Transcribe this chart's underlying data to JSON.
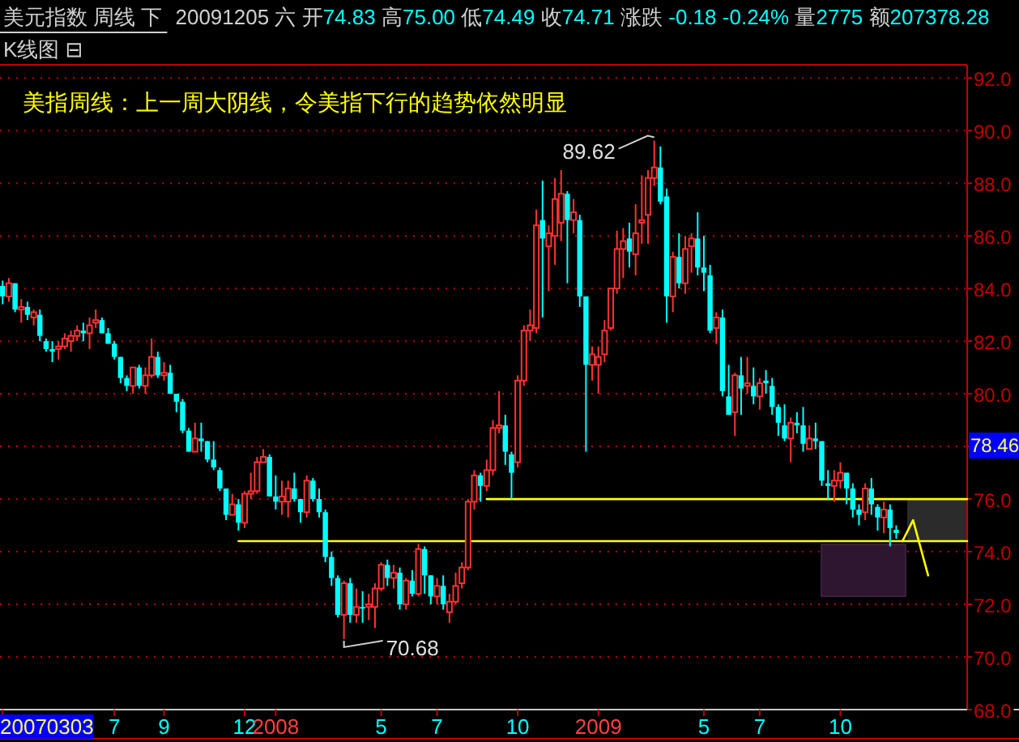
{
  "chart_data": {
    "type": "candlestick",
    "title": "美元指数 周线 下",
    "subtitle": "20091205 六 开74.83 高75.00 低74.49 收74.71 涨跌 -0.18 -0.24% 量2775 额207378.28",
    "annotations": [
      "K线图 ⊟",
      "美指周线：上一周大阴线，令美指下行的趋势依然明显",
      {
        "text": "89.62",
        "x": "2009-03-07",
        "y": 89.62
      },
      {
        "text": "70.68",
        "x": "2008-03-22",
        "y": 70.68
      },
      "78.46"
    ],
    "x": [
      "2007-03-03",
      "2007-03-10",
      "2007-03-17",
      "2007-03-24",
      "2007-03-31",
      "2007-04-07",
      "2007-04-14",
      "2007-04-21",
      "2007-04-28",
      "2007-05-05",
      "2007-05-12",
      "2007-05-19",
      "2007-05-26",
      "2007-06-02",
      "2007-06-09",
      "2007-06-16",
      "2007-06-23",
      "2007-06-30",
      "2007-07-07",
      "2007-07-14",
      "2007-07-21",
      "2007-07-28",
      "2007-08-04",
      "2007-08-11",
      "2007-08-18",
      "2007-08-25",
      "2007-09-01",
      "2007-09-08",
      "2007-09-15",
      "2007-09-22",
      "2007-09-29",
      "2007-10-06",
      "2007-10-13",
      "2007-10-20",
      "2007-10-27",
      "2007-11-03",
      "2007-11-10",
      "2007-11-17",
      "2007-11-24",
      "2007-12-01",
      "2007-12-08",
      "2007-12-15",
      "2007-12-22",
      "2007-12-29",
      "2008-01-05",
      "2008-01-12",
      "2008-01-19",
      "2008-01-26",
      "2008-02-02",
      "2008-02-09",
      "2008-02-16",
      "2008-02-23",
      "2008-03-01",
      "2008-03-08",
      "2008-03-15",
      "2008-03-22",
      "2008-03-29",
      "2008-04-05",
      "2008-04-12",
      "2008-04-19",
      "2008-04-26",
      "2008-05-03",
      "2008-05-10",
      "2008-05-17",
      "2008-05-24",
      "2008-05-31",
      "2008-06-07",
      "2008-06-14",
      "2008-06-21",
      "2008-06-28",
      "2008-07-05",
      "2008-07-12",
      "2008-07-19",
      "2008-07-26",
      "2008-08-02",
      "2008-08-09",
      "2008-08-16",
      "2008-08-23",
      "2008-08-30",
      "2008-09-06",
      "2008-09-13",
      "2008-09-20",
      "2008-09-27",
      "2008-10-04",
      "2008-10-11",
      "2008-10-18",
      "2008-10-25",
      "2008-11-01",
      "2008-11-08",
      "2008-11-15",
      "2008-11-22",
      "2008-11-29",
      "2008-12-06",
      "2008-12-13",
      "2008-12-20",
      "2008-12-27",
      "2009-01-03",
      "2009-01-10",
      "2009-01-17",
      "2009-01-24",
      "2009-01-31",
      "2009-02-07",
      "2009-02-14",
      "2009-02-21",
      "2009-02-28",
      "2009-03-07",
      "2009-03-14",
      "2009-03-21",
      "2009-03-28",
      "2009-04-04",
      "2009-04-11",
      "2009-04-18",
      "2009-04-25",
      "2009-05-02",
      "2009-05-09",
      "2009-05-16",
      "2009-05-23",
      "2009-05-30",
      "2009-06-06",
      "2009-06-13",
      "2009-06-20",
      "2009-06-27",
      "2009-07-04",
      "2009-07-11",
      "2009-07-18",
      "2009-07-25",
      "2009-08-01",
      "2009-08-08",
      "2009-08-15",
      "2009-08-22",
      "2009-08-29",
      "2009-09-05",
      "2009-09-12",
      "2009-09-19",
      "2009-09-26",
      "2009-10-03",
      "2009-10-10",
      "2009-10-17",
      "2009-10-24",
      "2009-10-31",
      "2009-11-07",
      "2009-11-14",
      "2009-11-21",
      "2009-11-28",
      "2009-12-05"
    ],
    "ohlc": [
      [
        84.1,
        84.3,
        83.4,
        83.7
      ],
      [
        83.7,
        84.4,
        83.5,
        84.2
      ],
      [
        84.2,
        84.2,
        83.1,
        83.2
      ],
      [
        83.2,
        83.6,
        82.7,
        83.3
      ],
      [
        83.3,
        83.5,
        82.8,
        83.0
      ],
      [
        82.9,
        83.2,
        82.6,
        83.1
      ],
      [
        83.0,
        83.2,
        82.0,
        82.2
      ],
      [
        82.0,
        82.1,
        81.6,
        81.7
      ],
      [
        81.7,
        82.0,
        81.2,
        81.6
      ],
      [
        81.7,
        82.0,
        81.3,
        81.8
      ],
      [
        81.8,
        82.3,
        81.7,
        82.1
      ],
      [
        82.0,
        82.4,
        81.6,
        82.2
      ],
      [
        82.2,
        82.6,
        82.0,
        82.4
      ],
      [
        82.4,
        82.7,
        82.0,
        82.3
      ],
      [
        82.3,
        82.9,
        81.7,
        82.6
      ],
      [
        82.7,
        83.2,
        82.5,
        82.8
      ],
      [
        82.8,
        82.9,
        82.3,
        82.3
      ],
      [
        82.3,
        82.5,
        81.9,
        81.9
      ],
      [
        81.9,
        82.0,
        81.3,
        81.4
      ],
      [
        81.4,
        81.4,
        80.4,
        80.6
      ],
      [
        80.6,
        80.7,
        80.1,
        80.3
      ],
      [
        80.3,
        81.0,
        80.0,
        81.0
      ],
      [
        81.0,
        81.1,
        80.2,
        80.3
      ],
      [
        80.3,
        81.0,
        80.0,
        80.7
      ],
      [
        80.7,
        82.1,
        80.6,
        81.4
      ],
      [
        81.4,
        81.6,
        80.6,
        80.7
      ],
      [
        80.7,
        81.2,
        80.5,
        80.8
      ],
      [
        80.8,
        81.1,
        80.0,
        80.0
      ],
      [
        80.0,
        80.0,
        79.3,
        79.7
      ],
      [
        79.7,
        79.8,
        78.5,
        78.6
      ],
      [
        78.6,
        78.7,
        77.8,
        77.8
      ],
      [
        77.8,
        78.9,
        77.8,
        78.3
      ],
      [
        78.3,
        78.9,
        77.8,
        78.2
      ],
      [
        78.2,
        78.2,
        77.4,
        77.5
      ],
      [
        77.5,
        78.2,
        77.1,
        77.2
      ],
      [
        77.1,
        77.2,
        76.3,
        76.4
      ],
      [
        76.4,
        76.4,
        75.2,
        75.4
      ],
      [
        75.4,
        76.2,
        75.4,
        75.8
      ],
      [
        75.8,
        76.0,
        74.8,
        75.1
      ],
      [
        75.1,
        76.3,
        74.9,
        76.2
      ],
      [
        76.2,
        77.0,
        76.0,
        76.3
      ],
      [
        76.3,
        77.6,
        76.2,
        77.4
      ],
      [
        77.4,
        77.9,
        77.4,
        77.6
      ],
      [
        77.6,
        77.7,
        76.1,
        76.1
      ],
      [
        76.1,
        76.9,
        75.6,
        75.9
      ],
      [
        75.9,
        76.7,
        75.4,
        76.1
      ],
      [
        75.9,
        76.7,
        75.3,
        76.4
      ],
      [
        76.4,
        77.0,
        75.9,
        76.0
      ],
      [
        76.0,
        76.0,
        75.1,
        75.5
      ],
      [
        75.5,
        76.9,
        75.3,
        76.7
      ],
      [
        76.7,
        76.8,
        75.9,
        76.0
      ],
      [
        76.0,
        76.4,
        75.3,
        75.5
      ],
      [
        75.5,
        75.6,
        73.6,
        73.8
      ],
      [
        73.8,
        74.0,
        72.7,
        73.0
      ],
      [
        73.0,
        73.1,
        71.5,
        71.6
      ],
      [
        71.6,
        72.9,
        70.68,
        72.8
      ],
      [
        72.8,
        73.0,
        71.3,
        71.6
      ],
      [
        71.6,
        72.6,
        71.3,
        71.9
      ],
      [
        71.9,
        72.5,
        71.3,
        71.9
      ],
      [
        71.9,
        72.4,
        71.4,
        72.0
      ],
      [
        71.9,
        72.8,
        71.1,
        72.6
      ],
      [
        72.6,
        73.6,
        72.5,
        73.5
      ],
      [
        73.5,
        73.7,
        72.7,
        73.0
      ],
      [
        73.0,
        73.5,
        72.6,
        73.2
      ],
      [
        73.2,
        73.4,
        71.8,
        72.0
      ],
      [
        72.0,
        73.0,
        71.8,
        72.9
      ],
      [
        72.9,
        73.3,
        72.3,
        72.4
      ],
      [
        72.4,
        74.3,
        72.3,
        74.1
      ],
      [
        74.1,
        74.2,
        72.4,
        73.1
      ],
      [
        73.1,
        73.1,
        72.0,
        72.3
      ],
      [
        72.3,
        73.0,
        72.0,
        72.7
      ],
      [
        72.7,
        73.1,
        71.8,
        72.0
      ],
      [
        71.7,
        72.4,
        71.3,
        72.1
      ],
      [
        72.1,
        73.2,
        72.0,
        72.7
      ],
      [
        72.8,
        73.6,
        72.6,
        73.4
      ],
      [
        73.4,
        76.0,
        73.3,
        75.9
      ],
      [
        75.9,
        77.1,
        75.6,
        76.9
      ],
      [
        76.9,
        77.0,
        75.9,
        76.5
      ],
      [
        76.5,
        77.5,
        76.3,
        77.1
      ],
      [
        77.1,
        79.0,
        76.9,
        78.7
      ],
      [
        78.7,
        80.1,
        78.5,
        78.8
      ],
      [
        78.8,
        79.2,
        77.3,
        77.8
      ],
      [
        77.7,
        77.8,
        76.0,
        77.0
      ],
      [
        77.4,
        80.7,
        77.2,
        80.5
      ],
      [
        80.5,
        82.6,
        80.3,
        82.4
      ],
      [
        82.4,
        83.2,
        82.0,
        82.6
      ],
      [
        82.5,
        87.0,
        82.3,
        86.4
      ],
      [
        86.6,
        88.1,
        82.9,
        85.9
      ],
      [
        85.6,
        86.4,
        83.9,
        86.1
      ],
      [
        86.0,
        88.2,
        84.9,
        87.4
      ],
      [
        86.5,
        88.5,
        85.8,
        87.6
      ],
      [
        87.6,
        87.7,
        84.2,
        86.6
      ],
      [
        86.6,
        87.4,
        86.1,
        86.9
      ],
      [
        86.6,
        86.8,
        83.3,
        83.7
      ],
      [
        83.7,
        83.7,
        77.8,
        81.1
      ],
      [
        81.1,
        81.8,
        80.5,
        81.5
      ],
      [
        81.1,
        81.8,
        80.0,
        81.4
      ],
      [
        81.5,
        82.8,
        81.2,
        82.4
      ],
      [
        82.5,
        84.0,
        82.4,
        84.0
      ],
      [
        84.0,
        86.2,
        83.8,
        85.5
      ],
      [
        85.5,
        86.3,
        84.4,
        85.8
      ],
      [
        85.9,
        86.5,
        84.8,
        85.4
      ],
      [
        85.3,
        87.2,
        84.5,
        86.1
      ],
      [
        86.5,
        88.3,
        85.7,
        86.6
      ],
      [
        86.8,
        88.5,
        85.7,
        88.2
      ],
      [
        88.2,
        89.62,
        87.9,
        88.6
      ],
      [
        88.6,
        89.4,
        87.2,
        87.3
      ],
      [
        87.5,
        87.8,
        82.7,
        83.7
      ],
      [
        83.7,
        85.4,
        83.1,
        85.2
      ],
      [
        85.2,
        86.1,
        84.0,
        84.2
      ],
      [
        84.2,
        86.0,
        83.8,
        85.5
      ],
      [
        85.6,
        86.1,
        84.6,
        85.9
      ],
      [
        85.9,
        86.9,
        84.5,
        84.8
      ],
      [
        84.8,
        86.0,
        83.9,
        84.6
      ],
      [
        84.5,
        84.9,
        82.3,
        82.4
      ],
      [
        82.5,
        83.1,
        81.9,
        82.9
      ],
      [
        82.9,
        83.2,
        79.9,
        80.1
      ],
      [
        79.9,
        81.1,
        79.2,
        79.2
      ],
      [
        79.3,
        80.8,
        78.4,
        80.7
      ],
      [
        80.7,
        81.4,
        79.2,
        80.2
      ],
      [
        80.3,
        81.4,
        80.0,
        80.4
      ],
      [
        80.3,
        81.0,
        79.6,
        79.9
      ],
      [
        79.9,
        80.6,
        79.4,
        80.4
      ],
      [
        80.5,
        80.9,
        80.0,
        80.4
      ],
      [
        80.3,
        80.6,
        79.2,
        79.5
      ],
      [
        79.5,
        79.6,
        78.4,
        78.9
      ],
      [
        78.8,
        79.6,
        78.2,
        78.3
      ],
      [
        78.3,
        79.1,
        77.4,
        78.9
      ],
      [
        78.9,
        79.3,
        78.5,
        78.8
      ],
      [
        78.8,
        79.5,
        77.8,
        78.1
      ],
      [
        77.9,
        78.8,
        77.9,
        78.3
      ],
      [
        78.3,
        78.9,
        77.9,
        78.2
      ],
      [
        78.2,
        78.2,
        76.5,
        76.7
      ],
      [
        76.6,
        77.1,
        76.0,
        76.5
      ],
      [
        76.5,
        77.1,
        75.9,
        76.7
      ],
      [
        76.7,
        77.4,
        76.4,
        77.0
      ],
      [
        77.0,
        77.0,
        75.8,
        76.4
      ],
      [
        76.4,
        76.6,
        75.3,
        75.6
      ],
      [
        75.6,
        75.8,
        75.0,
        75.4
      ],
      [
        75.5,
        76.6,
        75.2,
        76.4
      ],
      [
        76.4,
        76.8,
        75.4,
        75.8
      ],
      [
        75.7,
        75.8,
        74.8,
        75.3
      ],
      [
        75.3,
        75.9,
        74.7,
        75.6
      ],
      [
        75.6,
        75.8,
        74.2,
        74.9
      ],
      [
        74.83,
        75.0,
        74.49,
        74.71
      ]
    ],
    "colors": [
      "#00ffff",
      "#ff3232",
      "#00ffff",
      "#ff3232",
      "#00ffff",
      "#ff3232",
      "#00ffff",
      "#00ffff",
      "#00ffff",
      "#ff3232",
      "#ff3232",
      "#ff3232",
      "#ff3232",
      "#00ffff",
      "#ff3232",
      "#ff3232",
      "#00ffff",
      "#00ffff",
      "#00ffff",
      "#00ffff",
      "#00ffff",
      "#ff3232",
      "#00ffff",
      "#ff3232",
      "#ff3232",
      "#00ffff",
      "#ff3232",
      "#00ffff",
      "#00ffff",
      "#00ffff",
      "#00ffff",
      "#ff3232",
      "#00ffff",
      "#00ffff",
      "#00ffff",
      "#00ffff",
      "#00ffff",
      "#ff3232",
      "#00ffff",
      "#ff3232",
      "#ff3232",
      "#ff3232",
      "#ff3232",
      "#00ffff",
      "#00ffff",
      "#ff3232",
      "#ff3232",
      "#00ffff",
      "#00ffff",
      "#ff3232",
      "#00ffff",
      "#00ffff",
      "#00ffff",
      "#00ffff",
      "#00ffff",
      "#ff3232",
      "#00ffff",
      "#ff3232",
      "#00ffff",
      "#ff3232",
      "#ff3232",
      "#ff3232",
      "#00ffff",
      "#ff3232",
      "#00ffff",
      "#ff3232",
      "#00ffff",
      "#ff3232",
      "#00ffff",
      "#00ffff",
      "#ff3232",
      "#00ffff",
      "#ff3232",
      "#ff3232",
      "#ff3232",
      "#ff3232",
      "#ff3232",
      "#00ffff",
      "#ff3232",
      "#ff3232",
      "#ff3232",
      "#00ffff",
      "#00ffff",
      "#ff3232",
      "#ff3232",
      "#ff3232",
      "#ff3232",
      "#00ffff",
      "#ff3232",
      "#ff3232",
      "#ff3232",
      "#00ffff",
      "#ff3232",
      "#00ffff",
      "#00ffff",
      "#ff3232",
      "#ff3232",
      "#ff3232",
      "#ff3232",
      "#ff3232",
      "#ff3232",
      "#00ffff",
      "#ff3232",
      "#ff3232",
      "#ff3232",
      "#ff3232",
      "#00ffff",
      "#00ffff",
      "#ff3232",
      "#00ffff",
      "#ff3232",
      "#ff3232",
      "#00ffff",
      "#00ffff",
      "#00ffff",
      "#ff3232",
      "#00ffff",
      "#00ffff",
      "#ff3232",
      "#00ffff",
      "#ff3232",
      "#00ffff",
      "#ff3232",
      "#00ffff",
      "#00ffff",
      "#00ffff",
      "#00ffff",
      "#ff3232",
      "#00ffff",
      "#00ffff",
      "#ff3232",
      "#00ffff",
      "#00ffff",
      "#00ffff",
      "#ff3232",
      "#ff3232",
      "#00ffff",
      "#00ffff",
      "#00ffff",
      "#ff3232",
      "#00ffff",
      "#00ffff",
      "#ff3232",
      "#00ffff",
      "#00ffff"
    ],
    "series": [
      {
        "type": "line",
        "color": "#ffff00",
        "x": [
          "2008-08-30",
          "2010-02-23"
        ],
        "values": [
          76.0,
          76.0
        ]
      },
      {
        "type": "line",
        "color": "#ffff00",
        "x": [
          "2007-11-24",
          "2010-02-23"
        ],
        "values": [
          74.4,
          74.4
        ]
      },
      {
        "type": "line",
        "color": "#ffff00",
        "x": [
          "2009-12-12",
          "2009-12-24",
          "2010-01-10"
        ],
        "values": [
          74.4,
          75.2,
          73.1
        ]
      }
    ],
    "xlim": [
      "2007-02-28",
      "2010-02-23"
    ],
    "xticks": [
      {
        "value": "2007-03-03",
        "label": "20070303"
      },
      {
        "value": "2007-07-07",
        "label": "7"
      },
      {
        "value": "2007-09-01",
        "label": "9"
      },
      {
        "value": "2007-12-01",
        "label": "12"
      },
      {
        "value": "2008-01-05",
        "label": "2008"
      },
      {
        "value": "2008-05-03",
        "label": "5"
      },
      {
        "value": "2008-07-05",
        "label": "7"
      },
      {
        "value": "2008-10-04",
        "label": "10"
      },
      {
        "value": "2009-01-03",
        "label": "2009"
      },
      {
        "value": "2009-05-02",
        "label": "5"
      },
      {
        "value": "2009-07-04",
        "label": "7"
      },
      {
        "value": "2009-10-03",
        "label": "10"
      }
    ],
    "ylim": [
      68,
      92.5
    ],
    "yticks": [
      {
        "value": 68,
        "label": "68.0"
      },
      {
        "value": 70,
        "label": "70.0"
      },
      {
        "value": 72,
        "label": "72.0"
      },
      {
        "value": 74,
        "label": "74.0"
      },
      {
        "value": 76,
        "label": "76.0"
      },
      {
        "value": 78,
        "label": null
      },
      {
        "value": 80,
        "label": "80.0"
      },
      {
        "value": 82,
        "label": "82.0"
      },
      {
        "value": 84,
        "label": "84.0"
      },
      {
        "value": 86,
        "label": "86.0"
      },
      {
        "value": 88,
        "label": "88.0"
      },
      {
        "value": 90,
        "label": "90.0"
      },
      {
        "value": 92,
        "label": "92.0"
      }
    ],
    "grid": "y"
  }
}
